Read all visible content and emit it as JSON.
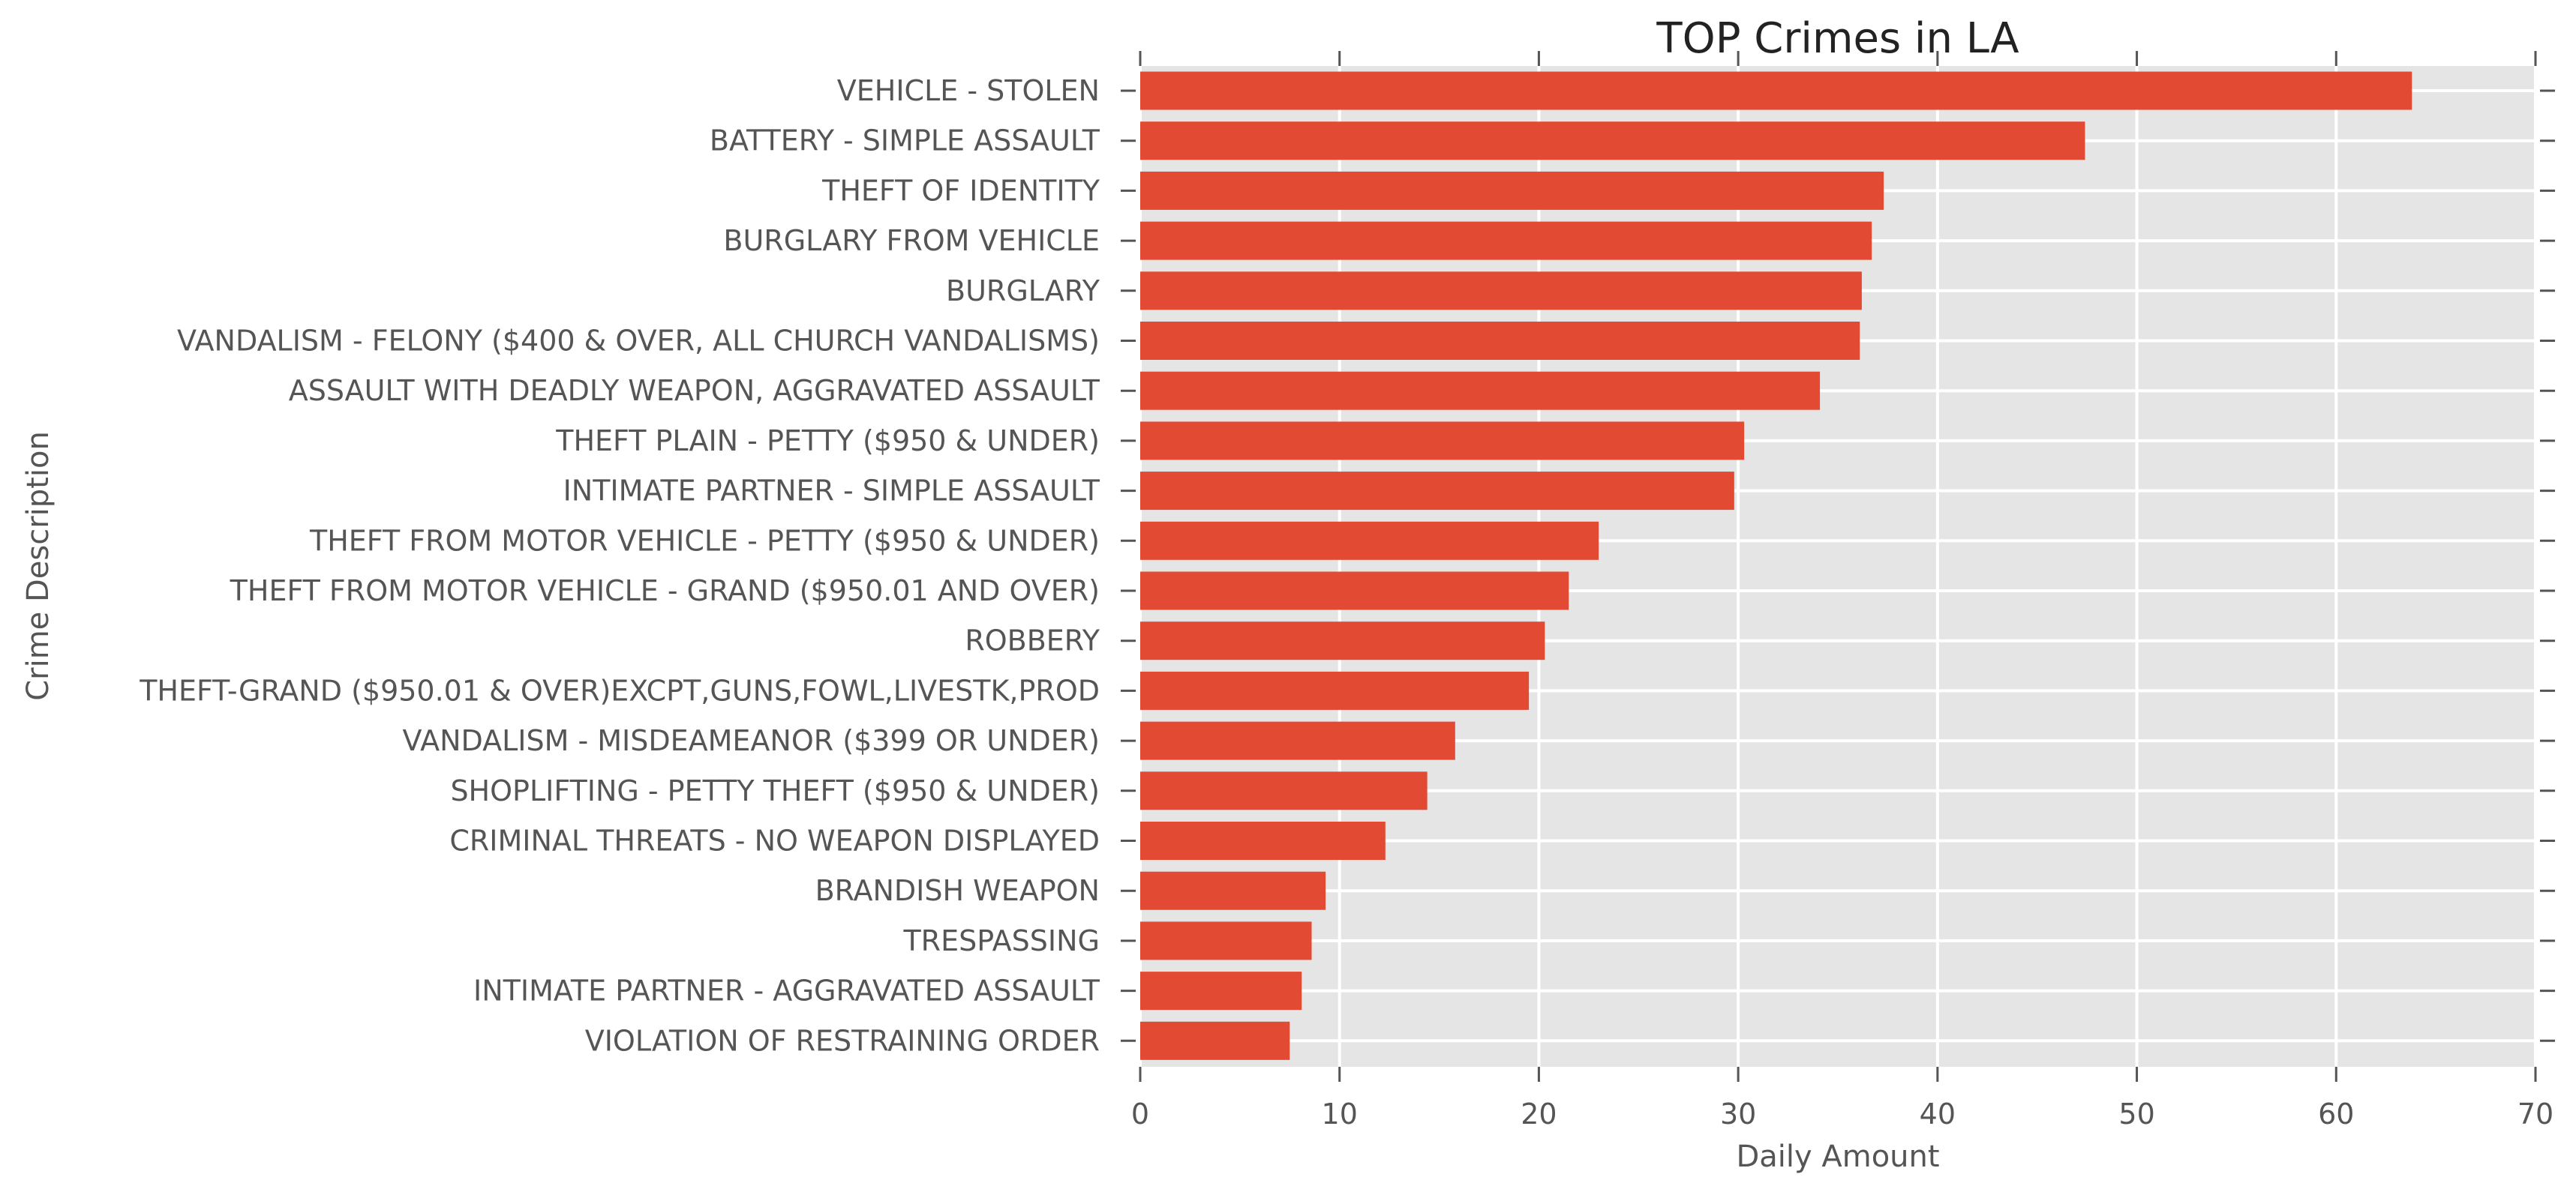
{
  "chart_data": {
    "type": "bar",
    "orientation": "horizontal",
    "title": "TOP Crimes in LA",
    "xlabel": "Daily Amount",
    "ylabel": "Crime Description",
    "xlim": [
      0,
      70
    ],
    "xticks": [
      0,
      10,
      20,
      30,
      40,
      50,
      60,
      70
    ],
    "grid": true,
    "bar_color": "#E24A33",
    "background_color": "#E5E5E5",
    "categories": [
      "VEHICLE - STOLEN",
      "BATTERY - SIMPLE ASSAULT",
      "THEFT OF IDENTITY",
      "BURGLARY FROM VEHICLE",
      "BURGLARY",
      "VANDALISM - FELONY ($400 & OVER, ALL CHURCH VANDALISMS)",
      "ASSAULT WITH DEADLY WEAPON, AGGRAVATED ASSAULT",
      "THEFT PLAIN - PETTY ($950 & UNDER)",
      "INTIMATE PARTNER - SIMPLE ASSAULT",
      "THEFT FROM MOTOR VEHICLE - PETTY ($950 & UNDER)",
      "THEFT FROM MOTOR VEHICLE - GRAND ($950.01 AND OVER)",
      "ROBBERY",
      "THEFT-GRAND ($950.01 & OVER)EXCPT,GUNS,FOWL,LIVESTK,PROD",
      "VANDALISM - MISDEAMEANOR ($399 OR UNDER)",
      "SHOPLIFTING - PETTY THEFT ($950 & UNDER)",
      "CRIMINAL THREATS - NO WEAPON DISPLAYED",
      "BRANDISH WEAPON",
      "TRESPASSING",
      "INTIMATE PARTNER - AGGRAVATED ASSAULT",
      "VIOLATION OF RESTRAINING ORDER"
    ],
    "values": [
      63.8,
      47.4,
      37.3,
      36.7,
      36.2,
      36.1,
      34.1,
      30.3,
      29.8,
      23.0,
      21.5,
      20.3,
      19.5,
      15.8,
      14.4,
      12.3,
      9.3,
      8.6,
      8.1,
      7.5
    ]
  }
}
